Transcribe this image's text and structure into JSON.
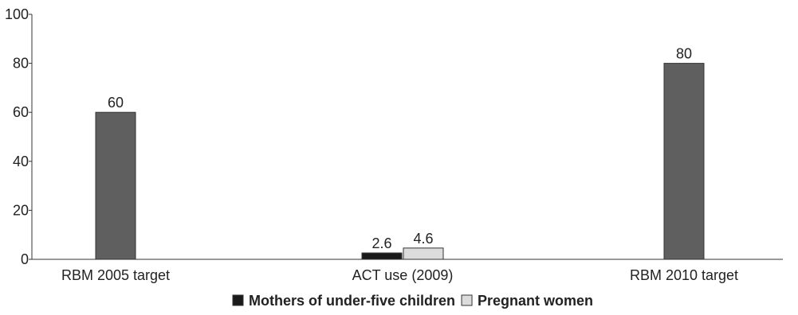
{
  "chart_data": {
    "type": "bar",
    "ylim": [
      0,
      100
    ],
    "yticks": [
      0,
      20,
      40,
      60,
      80,
      100
    ],
    "grid": false,
    "legend_position": "bottom-center",
    "bars": [
      {
        "category": "RBM 2005 target",
        "series": "target",
        "value": 60,
        "label": "60"
      },
      {
        "category": "ACT use (2009)",
        "series": "Mothers of under-five children",
        "value": 2.6,
        "label": "2.6"
      },
      {
        "category": "ACT use (2009)",
        "series": "Pregnant women",
        "value": 4.6,
        "label": "4.6"
      },
      {
        "category": "RBM 2010 target",
        "series": "target",
        "value": 80,
        "label": "80"
      }
    ],
    "categories": [
      "RBM 2005 target",
      "ACT use (2009)",
      "RBM 2010 target"
    ],
    "legend": [
      {
        "name": "Mothers of under-five children",
        "color": "#1a1a1a"
      },
      {
        "name": "Pregnant women",
        "color": "#dcdcdc"
      }
    ],
    "colors": {
      "target": "#5f5f5f",
      "Mothers of under-five children": "#1a1a1a",
      "Pregnant women": "#dcdcdc"
    }
  }
}
